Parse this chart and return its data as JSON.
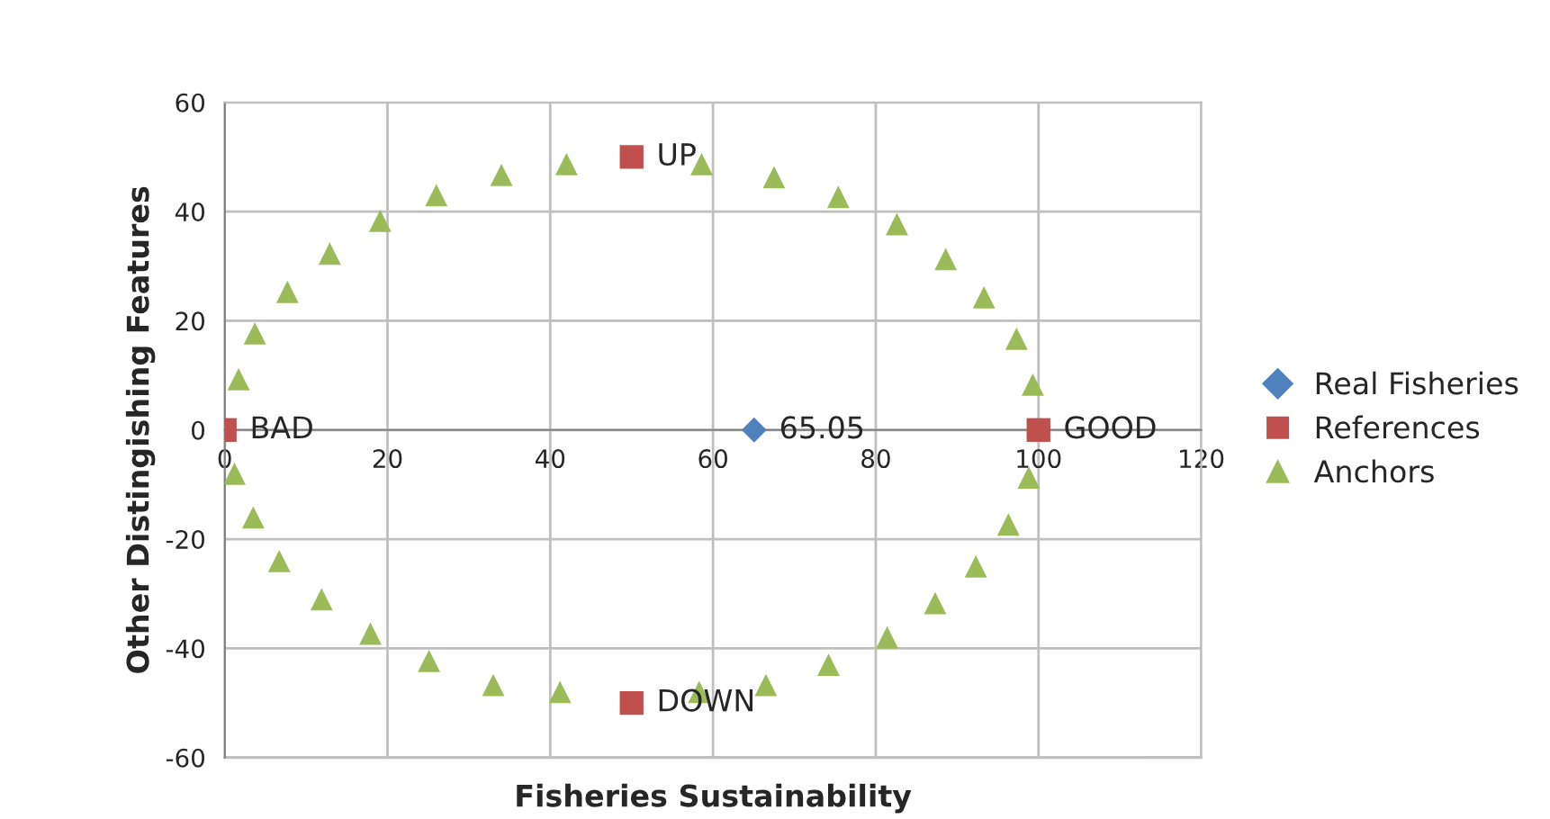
{
  "chart_data": {
    "type": "scatter",
    "xlabel": "Fisheries Sustainability",
    "ylabel": "Other Distingishing Features",
    "xlim": [
      0,
      120
    ],
    "xticks": [
      0,
      20,
      40,
      60,
      80,
      100,
      120
    ],
    "ylim": [
      -60,
      60
    ],
    "yticks": [
      -60,
      -40,
      -20,
      0,
      20,
      40,
      60
    ],
    "grid": true,
    "legend": "right",
    "series": [
      {
        "name": "Real Fisheries",
        "color": "#4f81bd",
        "marker": "diamond",
        "x": [
          65.05
        ],
        "values": [
          0
        ]
      },
      {
        "name": "References",
        "color": "#c0504d",
        "marker": "square",
        "x": [
          0,
          100,
          50,
          50
        ],
        "values": [
          0,
          0,
          50,
          -50
        ]
      },
      {
        "name": "Anchors",
        "color": "#9bbb59",
        "marker": "triangle",
        "x": [
          1.7,
          3.7,
          7.7,
          12.9,
          19.1,
          26,
          34,
          42,
          58.6,
          67.5,
          75.4,
          82.6,
          88.6,
          93.3,
          97.3,
          99.3,
          98.8,
          96.3,
          92.3,
          87.3,
          81.4,
          74.2,
          66.5,
          58.3,
          41.2,
          33,
          25.1,
          17.9,
          11.9,
          6.7,
          3.5,
          1.2
        ],
        "values": [
          9.3,
          17.7,
          25.3,
          32.3,
          38.3,
          43,
          46.7,
          48.7,
          48.7,
          46.3,
          42.7,
          37.7,
          31.3,
          24.3,
          16.7,
          8.3,
          -8.7,
          -17.3,
          -25,
          -31.7,
          -38,
          -43,
          -46.7,
          -48,
          -48,
          -46.7,
          -42.3,
          -37.3,
          -31,
          -24,
          -16,
          -8
        ]
      }
    ],
    "annotations": [
      {
        "text": "65.05",
        "x": 65.05,
        "y": 0
      },
      {
        "text": "BAD",
        "x": 0,
        "y": 0
      },
      {
        "text": "GOOD",
        "x": 100,
        "y": 0
      },
      {
        "text": "UP",
        "x": 50,
        "y": 50
      },
      {
        "text": "DOWN",
        "x": 50,
        "y": -50
      }
    ]
  }
}
